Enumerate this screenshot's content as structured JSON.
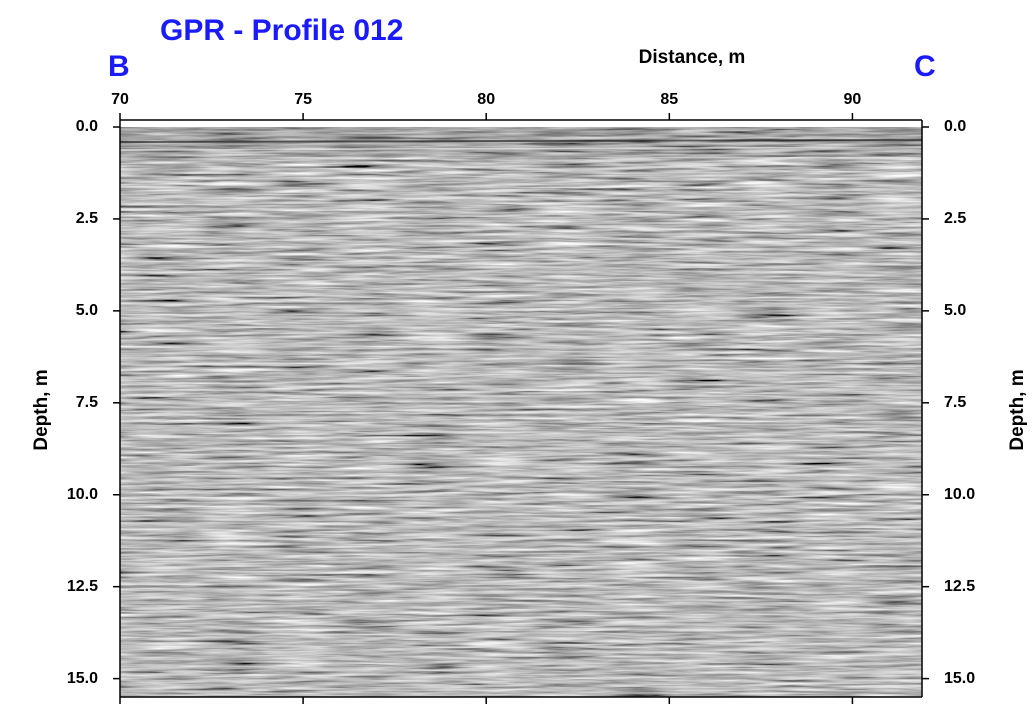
{
  "chart_data": {
    "type": "radargram",
    "title": "GPR - Profile 012",
    "left_label": "B",
    "right_label": "C",
    "xlabel": "Distance, m",
    "ylabel": "Depth, m",
    "xlim": [
      70,
      91.9
    ],
    "xticks": [
      70,
      75,
      80,
      85,
      90
    ],
    "ylim": [
      0,
      15.5
    ],
    "yticks": [
      {
        "value": 0,
        "label": "0.0"
      },
      2.5,
      {
        "value": 5,
        "label": "5.0"
      },
      7.5,
      {
        "value": 10,
        "label": "10.0"
      },
      12.5,
      {
        "value": 15,
        "label": "15.0"
      }
    ],
    "y_inverted": true
  }
}
